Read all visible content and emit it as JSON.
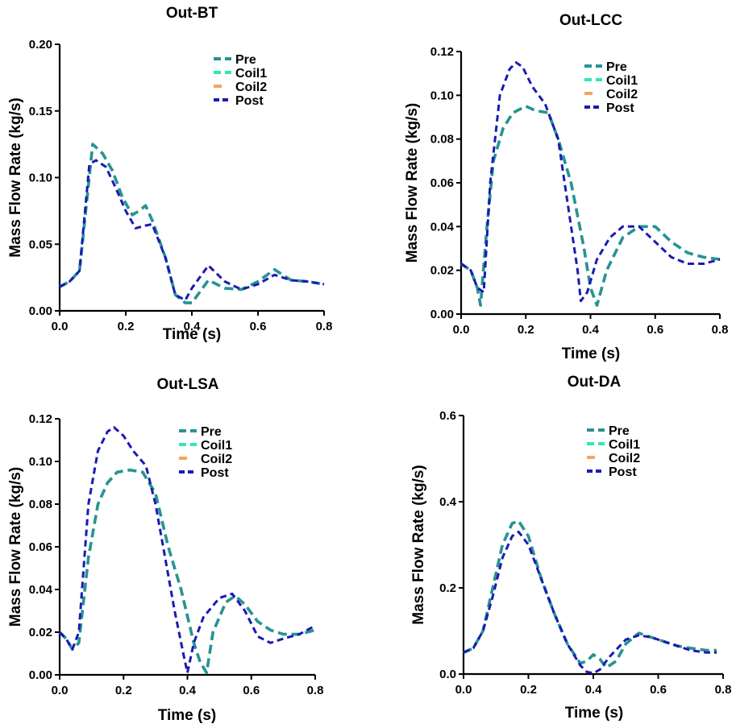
{
  "colors": {
    "pre": "#2a9294",
    "coil1": "#2ee8b6",
    "coil2": "#f5a55c",
    "post": "#1a1ab4",
    "axis": "#000000"
  },
  "chart_data": [
    {
      "type": "line",
      "title": "Out-BT",
      "xlabel": "Time (s)",
      "ylabel": "Mass Flow Rate (kg/s)",
      "xlim": [
        0,
        0.8
      ],
      "ylim": [
        0,
        0.2
      ],
      "xticks": [
        "0.0",
        "0.2",
        "0.4",
        "0.6",
        "0.8"
      ],
      "yticks": [
        "0.00",
        "0.05",
        "0.10",
        "0.15",
        "0.20"
      ],
      "legend": [
        "Pre",
        "Coil1",
        "Coil2",
        "Post"
      ],
      "series": [
        {
          "name": "Pre",
          "x": [
            0,
            0.03,
            0.06,
            0.1,
            0.13,
            0.16,
            0.19,
            0.22,
            0.24,
            0.26,
            0.28,
            0.32,
            0.35,
            0.38,
            0.4,
            0.45,
            0.5,
            0.55,
            0.6,
            0.65,
            0.7,
            0.75,
            0.8
          ],
          "y": [
            0.018,
            0.022,
            0.03,
            0.125,
            0.118,
            0.105,
            0.085,
            0.072,
            0.075,
            0.079,
            0.068,
            0.04,
            0.012,
            0.006,
            0.006,
            0.023,
            0.017,
            0.016,
            0.022,
            0.031,
            0.023,
            0.022,
            0.02
          ]
        },
        {
          "name": "Coil1",
          "x": [
            0,
            0.03,
            0.06,
            0.1,
            0.13,
            0.16,
            0.19,
            0.22,
            0.24,
            0.26,
            0.28,
            0.32,
            0.35,
            0.38,
            0.4,
            0.45,
            0.5,
            0.55,
            0.6,
            0.65,
            0.7,
            0.75,
            0.8
          ],
          "y": [
            0.018,
            0.022,
            0.03,
            0.125,
            0.118,
            0.105,
            0.085,
            0.072,
            0.075,
            0.079,
            0.068,
            0.04,
            0.012,
            0.006,
            0.006,
            0.023,
            0.017,
            0.016,
            0.022,
            0.031,
            0.023,
            0.022,
            0.02
          ]
        },
        {
          "name": "Coil2",
          "x": [
            0,
            0.03,
            0.06,
            0.1,
            0.13,
            0.16,
            0.19,
            0.22,
            0.24,
            0.26,
            0.28,
            0.32,
            0.35,
            0.38,
            0.4,
            0.45,
            0.5,
            0.55,
            0.6,
            0.65,
            0.7,
            0.75,
            0.8
          ],
          "y": [
            0.018,
            0.022,
            0.03,
            0.125,
            0.118,
            0.105,
            0.085,
            0.072,
            0.075,
            0.079,
            0.068,
            0.04,
            0.012,
            0.006,
            0.006,
            0.023,
            0.017,
            0.016,
            0.022,
            0.031,
            0.023,
            0.022,
            0.02
          ]
        },
        {
          "name": "Post",
          "x": [
            0,
            0.03,
            0.06,
            0.09,
            0.11,
            0.14,
            0.17,
            0.2,
            0.23,
            0.26,
            0.28,
            0.32,
            0.35,
            0.38,
            0.4,
            0.45,
            0.5,
            0.55,
            0.6,
            0.65,
            0.7,
            0.75,
            0.8
          ],
          "y": [
            0.018,
            0.022,
            0.03,
            0.11,
            0.113,
            0.108,
            0.092,
            0.075,
            0.062,
            0.064,
            0.065,
            0.04,
            0.012,
            0.008,
            0.017,
            0.034,
            0.022,
            0.016,
            0.02,
            0.027,
            0.023,
            0.022,
            0.02
          ]
        }
      ]
    },
    {
      "type": "line",
      "title": "Out-LCC",
      "xlabel": "Time (s)",
      "ylabel": "Mass Flow Rate (kg/s)",
      "xlim": [
        0,
        0.8
      ],
      "ylim": [
        0,
        0.12
      ],
      "xticks": [
        "0.0",
        "0.2",
        "0.4",
        "0.6",
        "0.8"
      ],
      "yticks": [
        "0.00",
        "0.02",
        "0.04",
        "0.06",
        "0.08",
        "0.10",
        "0.12"
      ],
      "legend": [
        "Pre",
        "Coil1",
        "Coil2",
        "Post"
      ],
      "series": [
        {
          "name": "Pre",
          "x": [
            0,
            0.03,
            0.05,
            0.06,
            0.08,
            0.1,
            0.13,
            0.16,
            0.2,
            0.23,
            0.27,
            0.3,
            0.34,
            0.38,
            0.4,
            0.42,
            0.45,
            0.5,
            0.55,
            0.6,
            0.65,
            0.7,
            0.75,
            0.8
          ],
          "y": [
            0.023,
            0.02,
            0.012,
            0.004,
            0.04,
            0.07,
            0.085,
            0.092,
            0.095,
            0.093,
            0.092,
            0.08,
            0.06,
            0.03,
            0.012,
            0.004,
            0.02,
            0.035,
            0.04,
            0.04,
            0.033,
            0.028,
            0.026,
            0.025
          ]
        },
        {
          "name": "Coil1",
          "x": [
            0,
            0.03,
            0.05,
            0.06,
            0.08,
            0.1,
            0.13,
            0.16,
            0.2,
            0.23,
            0.27,
            0.3,
            0.34,
            0.38,
            0.4,
            0.42,
            0.45,
            0.5,
            0.55,
            0.6,
            0.65,
            0.7,
            0.75,
            0.8
          ],
          "y": [
            0.023,
            0.02,
            0.012,
            0.004,
            0.04,
            0.07,
            0.085,
            0.092,
            0.095,
            0.093,
            0.092,
            0.08,
            0.06,
            0.03,
            0.012,
            0.004,
            0.02,
            0.035,
            0.04,
            0.04,
            0.033,
            0.028,
            0.026,
            0.025
          ]
        },
        {
          "name": "Coil2",
          "x": [
            0,
            0.03,
            0.05,
            0.06,
            0.08,
            0.1,
            0.13,
            0.16,
            0.2,
            0.23,
            0.27,
            0.3,
            0.34,
            0.38,
            0.4,
            0.42,
            0.45,
            0.5,
            0.55,
            0.6,
            0.65,
            0.7,
            0.75,
            0.8
          ],
          "y": [
            0.023,
            0.02,
            0.012,
            0.004,
            0.04,
            0.07,
            0.085,
            0.092,
            0.095,
            0.093,
            0.092,
            0.08,
            0.06,
            0.03,
            0.012,
            0.004,
            0.02,
            0.035,
            0.04,
            0.04,
            0.033,
            0.028,
            0.026,
            0.025
          ]
        },
        {
          "name": "Post",
          "x": [
            0,
            0.03,
            0.05,
            0.07,
            0.09,
            0.12,
            0.15,
            0.17,
            0.19,
            0.22,
            0.26,
            0.3,
            0.33,
            0.36,
            0.37,
            0.39,
            0.42,
            0.46,
            0.5,
            0.55,
            0.6,
            0.65,
            0.7,
            0.75,
            0.8
          ],
          "y": [
            0.023,
            0.02,
            0.012,
            0.01,
            0.06,
            0.1,
            0.112,
            0.115,
            0.113,
            0.104,
            0.096,
            0.08,
            0.05,
            0.02,
            0.006,
            0.01,
            0.025,
            0.035,
            0.04,
            0.04,
            0.033,
            0.026,
            0.023,
            0.023,
            0.025
          ]
        }
      ]
    },
    {
      "type": "line",
      "title": "Out-LSA",
      "xlabel": "Time (s)",
      "ylabel": "Mass Flow Rate (kg/s)",
      "xlim": [
        0,
        0.8
      ],
      "ylim": [
        0,
        0.12
      ],
      "xticks": [
        "0.0",
        "0.2",
        "0.4",
        "0.6",
        "0.8"
      ],
      "yticks": [
        "0.00",
        "0.02",
        "0.04",
        "0.06",
        "0.08",
        "0.10",
        "0.12"
      ],
      "legend": [
        "Pre",
        "Coil1",
        "Coil2",
        "Post"
      ],
      "series": [
        {
          "name": "Pre",
          "x": [
            0,
            0.02,
            0.04,
            0.06,
            0.09,
            0.12,
            0.15,
            0.18,
            0.22,
            0.26,
            0.3,
            0.34,
            0.38,
            0.42,
            0.44,
            0.46,
            0.48,
            0.52,
            0.55,
            0.58,
            0.62,
            0.66,
            0.7,
            0.75,
            0.8
          ],
          "y": [
            0.02,
            0.017,
            0.012,
            0.015,
            0.055,
            0.08,
            0.09,
            0.095,
            0.096,
            0.095,
            0.085,
            0.06,
            0.04,
            0.015,
            0.006,
            0.001,
            0.02,
            0.034,
            0.037,
            0.033,
            0.025,
            0.021,
            0.019,
            0.019,
            0.021
          ]
        },
        {
          "name": "Coil1",
          "x": [
            0,
            0.02,
            0.04,
            0.06,
            0.09,
            0.12,
            0.15,
            0.18,
            0.22,
            0.26,
            0.3,
            0.34,
            0.38,
            0.42,
            0.44,
            0.46,
            0.48,
            0.52,
            0.55,
            0.58,
            0.62,
            0.66,
            0.7,
            0.75,
            0.8
          ],
          "y": [
            0.02,
            0.017,
            0.012,
            0.015,
            0.055,
            0.08,
            0.09,
            0.095,
            0.096,
            0.095,
            0.085,
            0.06,
            0.04,
            0.015,
            0.006,
            0.001,
            0.02,
            0.034,
            0.037,
            0.033,
            0.025,
            0.021,
            0.019,
            0.019,
            0.021
          ]
        },
        {
          "name": "Coil2",
          "x": [
            0,
            0.02,
            0.04,
            0.06,
            0.09,
            0.12,
            0.15,
            0.18,
            0.22,
            0.26,
            0.3,
            0.34,
            0.38,
            0.42,
            0.44,
            0.46,
            0.48,
            0.52,
            0.55,
            0.58,
            0.62,
            0.66,
            0.7,
            0.75,
            0.8
          ],
          "y": [
            0.02,
            0.017,
            0.012,
            0.015,
            0.055,
            0.08,
            0.09,
            0.095,
            0.096,
            0.095,
            0.085,
            0.06,
            0.04,
            0.015,
            0.006,
            0.001,
            0.02,
            0.034,
            0.037,
            0.033,
            0.025,
            0.021,
            0.019,
            0.019,
            0.021
          ]
        },
        {
          "name": "Post",
          "x": [
            0,
            0.02,
            0.04,
            0.06,
            0.09,
            0.12,
            0.15,
            0.17,
            0.2,
            0.23,
            0.27,
            0.3,
            0.33,
            0.36,
            0.39,
            0.4,
            0.42,
            0.45,
            0.5,
            0.54,
            0.58,
            0.62,
            0.66,
            0.7,
            0.75,
            0.8
          ],
          "y": [
            0.02,
            0.017,
            0.012,
            0.02,
            0.08,
            0.105,
            0.114,
            0.116,
            0.112,
            0.105,
            0.098,
            0.08,
            0.055,
            0.03,
            0.008,
            0.001,
            0.015,
            0.027,
            0.036,
            0.038,
            0.03,
            0.018,
            0.015,
            0.017,
            0.019,
            0.023
          ]
        }
      ]
    },
    {
      "type": "line",
      "title": "Out-DA",
      "xlabel": "Time (s)",
      "ylabel": "Mass Flow Rate (kg/s)",
      "xlim": [
        0,
        0.8
      ],
      "ylim": [
        0,
        0.6
      ],
      "xticks": [
        "0.0",
        "0.2",
        "0.4",
        "0.6",
        "0.8"
      ],
      "yticks": [
        "0.0",
        "0.2",
        "0.4",
        "0.6"
      ],
      "legend": [
        "Pre",
        "Coil1",
        "Coil2",
        "Post"
      ],
      "series": [
        {
          "name": "Pre",
          "x": [
            0,
            0.03,
            0.06,
            0.09,
            0.12,
            0.15,
            0.17,
            0.2,
            0.24,
            0.28,
            0.32,
            0.36,
            0.38,
            0.4,
            0.42,
            0.44,
            0.47,
            0.5,
            0.54,
            0.58,
            0.62,
            0.66,
            0.7,
            0.75,
            0.78
          ],
          "y": [
            0.05,
            0.06,
            0.1,
            0.2,
            0.3,
            0.35,
            0.355,
            0.32,
            0.22,
            0.14,
            0.07,
            0.025,
            0.03,
            0.045,
            0.035,
            0.015,
            0.03,
            0.07,
            0.095,
            0.085,
            0.075,
            0.065,
            0.06,
            0.055,
            0.055
          ]
        },
        {
          "name": "Coil1",
          "x": [
            0,
            0.03,
            0.06,
            0.09,
            0.12,
            0.15,
            0.17,
            0.2,
            0.24,
            0.28,
            0.32,
            0.36,
            0.38,
            0.4,
            0.42,
            0.44,
            0.47,
            0.5,
            0.54,
            0.58,
            0.62,
            0.66,
            0.7,
            0.75,
            0.78
          ],
          "y": [
            0.05,
            0.06,
            0.1,
            0.2,
            0.3,
            0.35,
            0.355,
            0.32,
            0.22,
            0.14,
            0.07,
            0.025,
            0.03,
            0.045,
            0.035,
            0.015,
            0.03,
            0.07,
            0.095,
            0.085,
            0.075,
            0.065,
            0.06,
            0.055,
            0.055
          ]
        },
        {
          "name": "Coil2",
          "x": [
            0,
            0.03,
            0.06,
            0.09,
            0.12,
            0.15,
            0.17,
            0.2,
            0.24,
            0.28,
            0.32,
            0.36,
            0.38,
            0.4,
            0.42,
            0.44,
            0.47,
            0.5,
            0.54,
            0.58,
            0.62,
            0.66,
            0.7,
            0.75,
            0.78
          ],
          "y": [
            0.05,
            0.06,
            0.1,
            0.2,
            0.3,
            0.35,
            0.355,
            0.32,
            0.22,
            0.14,
            0.07,
            0.025,
            0.03,
            0.045,
            0.035,
            0.015,
            0.03,
            0.07,
            0.095,
            0.085,
            0.075,
            0.065,
            0.06,
            0.055,
            0.055
          ]
        },
        {
          "name": "Post",
          "x": [
            0,
            0.03,
            0.06,
            0.09,
            0.12,
            0.15,
            0.17,
            0.2,
            0.24,
            0.28,
            0.32,
            0.36,
            0.38,
            0.4,
            0.42,
            0.45,
            0.5,
            0.54,
            0.58,
            0.62,
            0.66,
            0.7,
            0.75,
            0.78
          ],
          "y": [
            0.05,
            0.06,
            0.1,
            0.18,
            0.27,
            0.32,
            0.33,
            0.3,
            0.22,
            0.14,
            0.07,
            0.02,
            0.005,
            0.002,
            0.01,
            0.04,
            0.08,
            0.09,
            0.085,
            0.075,
            0.065,
            0.055,
            0.05,
            0.05
          ]
        }
      ]
    }
  ]
}
